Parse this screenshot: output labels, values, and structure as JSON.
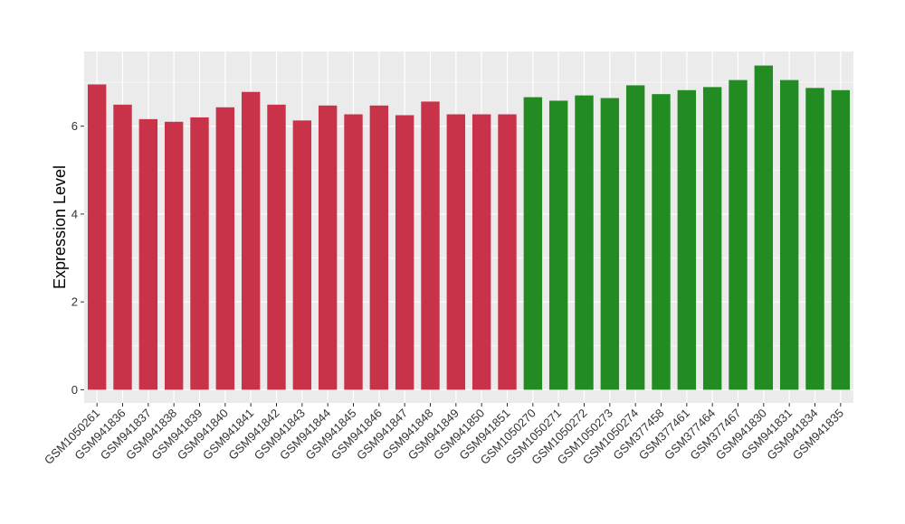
{
  "chart_data": {
    "type": "bar",
    "title": "",
    "xlabel": "",
    "ylabel": "Expression Level",
    "ylim": [
      -0.3,
      7.7
    ],
    "yticks": [
      0,
      2,
      4,
      6
    ],
    "grid": true,
    "legend": "none",
    "categories": [
      "GSM1050261",
      "GSM941836",
      "GSM941837",
      "GSM941838",
      "GSM941839",
      "GSM941840",
      "GSM941841",
      "GSM941842",
      "GSM941843",
      "GSM941844",
      "GSM941845",
      "GSM941846",
      "GSM941847",
      "GSM941848",
      "GSM941849",
      "GSM941850",
      "GSM941851",
      "GSM1050270",
      "GSM1050271",
      "GSM1050272",
      "GSM1050273",
      "GSM1050274",
      "GSM377458",
      "GSM377461",
      "GSM377464",
      "GSM377467",
      "GSM941830",
      "GSM941831",
      "GSM941834",
      "GSM941835"
    ],
    "values": [
      6.95,
      6.49,
      6.16,
      6.1,
      6.2,
      6.43,
      6.78,
      6.49,
      6.13,
      6.47,
      6.27,
      6.47,
      6.25,
      6.56,
      6.27,
      6.27,
      6.27,
      6.66,
      6.58,
      6.7,
      6.64,
      6.93,
      6.73,
      6.82,
      6.89,
      7.05,
      7.38,
      7.05,
      6.87,
      6.82
    ],
    "bar_colors": [
      "#C8334A",
      "#C8334A",
      "#C8334A",
      "#C8334A",
      "#C8334A",
      "#C8334A",
      "#C8334A",
      "#C8334A",
      "#C8334A",
      "#C8334A",
      "#C8334A",
      "#C8334A",
      "#C8334A",
      "#C8334A",
      "#C8334A",
      "#C8334A",
      "#C8334A",
      "#228B22",
      "#228B22",
      "#228B22",
      "#228B22",
      "#228B22",
      "#228B22",
      "#228B22",
      "#228B22",
      "#228B22",
      "#228B22",
      "#228B22",
      "#228B22",
      "#228B22"
    ],
    "panel_background": "#EBEBEB",
    "grid_color": "#FFFFFF"
  }
}
